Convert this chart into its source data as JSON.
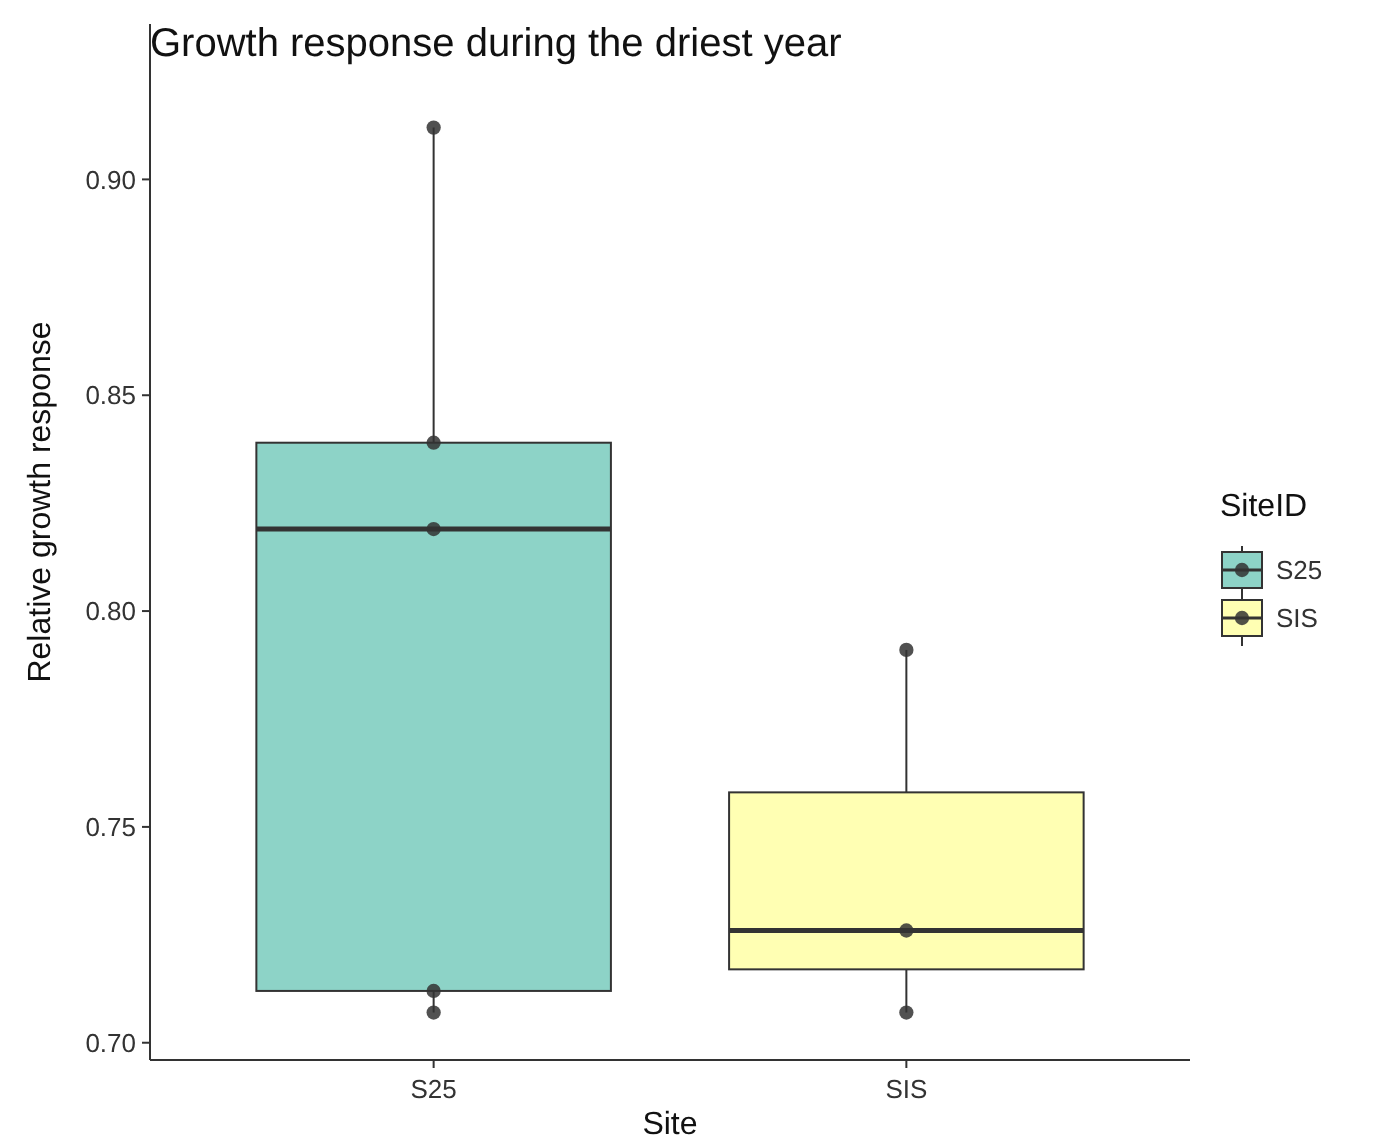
{
  "chart_data": {
    "type": "box",
    "title": "Growth response during the driest year",
    "xlabel": "Site",
    "ylabel": "Relative growth response",
    "legend_title": "SiteID",
    "legend": "right",
    "grid": false,
    "categories": [
      "S25",
      "SIS"
    ],
    "ylim": [
      0.696,
      0.936
    ],
    "yticks": [
      {
        "value": 0.7,
        "label": "0.70"
      },
      0.75,
      {
        "value": 0.8,
        "label": "0.80"
      },
      0.85,
      {
        "value": 0.9,
        "label": "0.90"
      }
    ],
    "series": [
      {
        "name": "S25",
        "type": "box",
        "color": "#8dd3c7",
        "boxes": [
          {
            "low": 0.707,
            "q1": 0.712,
            "median": 0.819,
            "q3": 0.839,
            "high": 0.912
          },
          null
        ]
      },
      {
        "name": "SIS",
        "type": "box",
        "color": "#ffffb3",
        "boxes": [
          null,
          {
            "low": 0.707,
            "q1": 0.717,
            "median": 0.726,
            "q3": 0.758,
            "high": 0.791
          }
        ]
      },
      {
        "type": "scatter",
        "color": "#333333",
        "marker": "circle",
        "x": [
          "S25",
          "S25",
          "S25",
          "S25",
          "S25",
          "SIS",
          "SIS",
          "SIS"
        ],
        "values": [
          0.912,
          0.839,
          0.819,
          0.712,
          0.707,
          0.791,
          0.726,
          0.707
        ]
      }
    ]
  }
}
